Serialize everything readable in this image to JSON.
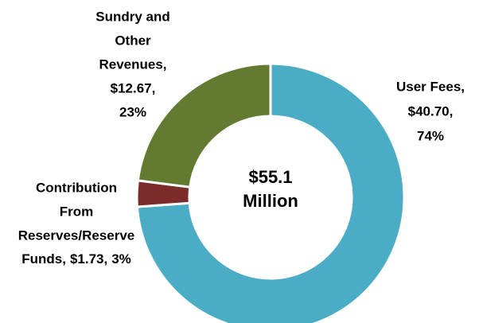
{
  "chart_data": {
    "type": "donut",
    "center_label": [
      "$55.1",
      "Million"
    ],
    "categories": [
      [
        "User Fees,"
      ],
      [
        "Contribution",
        "From",
        "Reserves/Reserve",
        "Funds,"
      ],
      [
        "Sundry and",
        "Other",
        "Revenues,"
      ]
    ],
    "values": [
      40.7,
      1.73,
      12.67
    ],
    "value_labels": [
      "$40.70,",
      "$1.73,",
      "$12.67,"
    ],
    "percent_labels": [
      "74%",
      "3%",
      "23%"
    ],
    "colors": [
      "#4bacc6",
      "#7b2c2a",
      "#637a31"
    ]
  }
}
